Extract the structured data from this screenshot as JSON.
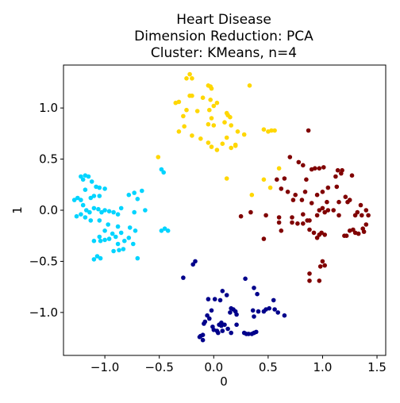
{
  "chart_data": {
    "type": "scatter",
    "title_lines": [
      "Heart Disease",
      "Dimension Reduction: PCA",
      "Cluster: KMeans, n=4"
    ],
    "xlabel": "0",
    "ylabel": "1",
    "xlim": [
      -1.38,
      1.58
    ],
    "ylim": [
      -1.42,
      1.42
    ],
    "xticks": [
      -1.0,
      -0.5,
      0.0,
      0.5,
      1.0,
      1.5
    ],
    "xtick_labels": [
      "−1.0",
      "−0.5",
      "0.0",
      "0.5",
      "1.0",
      "1.5"
    ],
    "yticks": [
      -1.0,
      -0.5,
      0.0,
      0.5,
      1.0
    ],
    "ytick_labels": [
      "−1.0",
      "−0.5",
      "0.0",
      "0.5",
      "1.0"
    ],
    "grid": false,
    "legend": "none",
    "series": [
      {
        "color": "#00d4ff",
        "points": [
          [
            -1.22,
            0.33
          ],
          [
            -1.18,
            0.34
          ],
          [
            -1.15,
            0.33
          ],
          [
            -1.2,
            0.3
          ],
          [
            -1.12,
            0.28
          ],
          [
            -1.08,
            0.23
          ],
          [
            -1.05,
            0.22
          ],
          [
            -1.0,
            0.21
          ],
          [
            -1.18,
            0.2
          ],
          [
            -1.13,
            0.12
          ],
          [
            -1.1,
            0.14
          ],
          [
            -1.05,
            0.14
          ],
          [
            -1.25,
            0.12
          ],
          [
            -1.28,
            0.1
          ],
          [
            -1.22,
            0.1
          ],
          [
            -1.2,
            0.05
          ],
          [
            -1.17,
            0.0
          ],
          [
            -1.14,
            -0.02
          ],
          [
            -1.1,
            0.02
          ],
          [
            -1.06,
            0.01
          ],
          [
            -1.03,
            -0.02
          ],
          [
            -1.0,
            0.0
          ],
          [
            -0.96,
            -0.01
          ],
          [
            -0.92,
            -0.02
          ],
          [
            -0.88,
            -0.04
          ],
          [
            -0.85,
            0.02
          ],
          [
            -0.78,
            0.15
          ],
          [
            -0.73,
            0.17
          ],
          [
            -0.66,
            0.19
          ],
          [
            -0.7,
            0.11
          ],
          [
            -0.73,
            -0.02
          ],
          [
            -0.63,
            0.0
          ],
          [
            -1.22,
            -0.04
          ],
          [
            -1.26,
            -0.06
          ],
          [
            -1.18,
            -0.07
          ],
          [
            -1.13,
            -0.1
          ],
          [
            -1.05,
            -0.1
          ],
          [
            -0.97,
            -0.14
          ],
          [
            -0.88,
            -0.16
          ],
          [
            -0.77,
            -0.17
          ],
          [
            -0.72,
            -0.2
          ],
          [
            -1.0,
            -0.2
          ],
          [
            -0.93,
            -0.23
          ],
          [
            -0.85,
            -0.22
          ],
          [
            -0.9,
            -0.26
          ],
          [
            -1.05,
            -0.26
          ],
          [
            -1.1,
            -0.3
          ],
          [
            -1.04,
            -0.3
          ],
          [
            -1.0,
            -0.29
          ],
          [
            -0.96,
            -0.28
          ],
          [
            -0.88,
            -0.33
          ],
          [
            -0.82,
            -0.3
          ],
          [
            -0.78,
            -0.27
          ],
          [
            -0.74,
            -0.33
          ],
          [
            -0.92,
            -0.4
          ],
          [
            -0.87,
            -0.39
          ],
          [
            -0.83,
            -0.38
          ],
          [
            -1.07,
            -0.45
          ],
          [
            -1.04,
            -0.47
          ],
          [
            -1.1,
            -0.48
          ],
          [
            -0.7,
            -0.47
          ],
          [
            -0.48,
            0.4
          ],
          [
            -0.46,
            0.37
          ],
          [
            -0.48,
            -0.2
          ],
          [
            -0.45,
            -0.18
          ],
          [
            -0.42,
            -0.2
          ]
        ]
      },
      {
        "color": "#ffd700",
        "points": [
          [
            -0.25,
            1.29
          ],
          [
            -0.22,
            1.33
          ],
          [
            -0.2,
            1.29
          ],
          [
            -0.05,
            1.22
          ],
          [
            -0.03,
            1.21
          ],
          [
            -0.02,
            1.19
          ],
          [
            0.33,
            1.22
          ],
          [
            -0.35,
            1.05
          ],
          [
            -0.32,
            1.06
          ],
          [
            -0.22,
            1.12
          ],
          [
            -0.2,
            1.12
          ],
          [
            -0.1,
            1.1
          ],
          [
            -0.03,
            1.08
          ],
          [
            0.0,
            1.02
          ],
          [
            0.03,
            1.05
          ],
          [
            -0.04,
            0.98
          ],
          [
            -0.15,
            0.97
          ],
          [
            -0.25,
            0.98
          ],
          [
            -0.28,
            0.92
          ],
          [
            0.12,
            0.95
          ],
          [
            0.13,
            0.93
          ],
          [
            0.15,
            0.91
          ],
          [
            -0.02,
            0.9
          ],
          [
            -0.05,
            0.84
          ],
          [
            0.0,
            0.83
          ],
          [
            0.1,
            0.86
          ],
          [
            0.16,
            0.83
          ],
          [
            -0.27,
            0.82
          ],
          [
            -0.32,
            0.77
          ],
          [
            -0.2,
            0.73
          ],
          [
            0.22,
            0.77
          ],
          [
            0.28,
            0.74
          ],
          [
            0.46,
            0.79
          ],
          [
            0.5,
            0.77
          ],
          [
            0.53,
            0.78
          ],
          [
            0.56,
            0.78
          ],
          [
            -0.12,
            0.7
          ],
          [
            0.12,
            0.71
          ],
          [
            -0.05,
            0.66
          ],
          [
            0.08,
            0.65
          ],
          [
            -0.02,
            0.62
          ],
          [
            0.03,
            0.59
          ],
          [
            0.2,
            0.63
          ],
          [
            0.16,
            0.61
          ],
          [
            0.2,
            0.64
          ],
          [
            -0.51,
            0.52
          ],
          [
            0.12,
            0.31
          ],
          [
            0.35,
            0.15
          ],
          [
            0.46,
            0.3
          ],
          [
            0.52,
            0.22
          ],
          [
            0.6,
            0.41
          ]
        ]
      },
      {
        "color": "#800000",
        "points": [
          [
            0.87,
            0.78
          ],
          [
            0.7,
            0.52
          ],
          [
            0.78,
            0.47
          ],
          [
            0.82,
            0.44
          ],
          [
            0.9,
            0.4
          ],
          [
            0.93,
            0.41
          ],
          [
            0.97,
            0.41
          ],
          [
            1.01,
            0.42
          ],
          [
            1.14,
            0.39
          ],
          [
            1.18,
            0.39
          ],
          [
            1.17,
            0.36
          ],
          [
            1.12,
            0.33
          ],
          [
            1.27,
            0.34
          ],
          [
            0.85,
            0.3
          ],
          [
            0.65,
            0.31
          ],
          [
            0.58,
            0.3
          ],
          [
            0.62,
            0.21
          ],
          [
            0.68,
            0.18
          ],
          [
            0.75,
            0.15
          ],
          [
            0.84,
            0.18
          ],
          [
            0.95,
            0.15
          ],
          [
            1.0,
            0.18
          ],
          [
            1.05,
            0.22
          ],
          [
            1.13,
            0.23
          ],
          [
            1.21,
            0.13
          ],
          [
            0.73,
            0.1
          ],
          [
            0.81,
            0.1
          ],
          [
            0.9,
            0.07
          ],
          [
            1.04,
            0.08
          ],
          [
            1.15,
            0.08
          ],
          [
            1.23,
            0.08
          ],
          [
            1.25,
            0.1
          ],
          [
            1.35,
            0.05
          ],
          [
            1.4,
            0.0
          ],
          [
            1.42,
            -0.05
          ],
          [
            1.36,
            -0.05
          ],
          [
            1.32,
            -0.02
          ],
          [
            1.3,
            -0.05
          ],
          [
            1.0,
            0.02
          ],
          [
            0.97,
            0.0
          ],
          [
            1.02,
            -0.02
          ],
          [
            1.05,
            0.0
          ],
          [
            1.1,
            0.0
          ],
          [
            0.82,
            -0.04
          ],
          [
            0.86,
            -0.1
          ],
          [
            0.88,
            -0.1
          ],
          [
            0.95,
            -0.05
          ],
          [
            1.15,
            -0.05
          ],
          [
            0.6,
            -0.07
          ],
          [
            0.72,
            -0.12
          ],
          [
            0.77,
            -0.13
          ],
          [
            0.82,
            -0.13
          ],
          [
            0.88,
            -0.19
          ],
          [
            0.92,
            -0.22
          ],
          [
            0.97,
            -0.24
          ],
          [
            0.99,
            -0.22
          ],
          [
            1.02,
            -0.24
          ],
          [
            0.95,
            -0.27
          ],
          [
            1.25,
            -0.2
          ],
          [
            1.28,
            -0.19
          ],
          [
            1.3,
            -0.22
          ],
          [
            1.33,
            -0.23
          ],
          [
            1.38,
            -0.21
          ],
          [
            1.22,
            -0.25
          ],
          [
            1.2,
            -0.25
          ],
          [
            1.4,
            -0.14
          ],
          [
            1.37,
            -0.18
          ],
          [
            0.62,
            -0.2
          ],
          [
            0.46,
            -0.28
          ],
          [
            0.6,
            -0.12
          ],
          [
            0.72,
            -0.07
          ],
          [
            1.0,
            -0.5
          ],
          [
            0.98,
            -0.55
          ],
          [
            1.02,
            -0.54
          ],
          [
            0.97,
            -0.69
          ],
          [
            0.88,
            -0.62
          ],
          [
            0.88,
            -0.69
          ],
          [
            0.25,
            -0.06
          ],
          [
            0.34,
            -0.02
          ],
          [
            0.48,
            -0.05
          ]
        ]
      },
      {
        "color": "#00008b",
        "points": [
          [
            -0.17,
            -0.5
          ],
          [
            -0.19,
            -0.53
          ],
          [
            -0.28,
            -0.66
          ],
          [
            0.29,
            -0.67
          ],
          [
            0.37,
            -0.76
          ],
          [
            0.4,
            -0.82
          ],
          [
            0.08,
            -0.79
          ],
          [
            0.12,
            -0.83
          ],
          [
            0.01,
            -0.87
          ],
          [
            0.06,
            -0.88
          ],
          [
            -0.05,
            -0.87
          ],
          [
            0.55,
            -0.88
          ],
          [
            0.56,
            -0.97
          ],
          [
            0.51,
            -0.96
          ],
          [
            0.48,
            -0.97
          ],
          [
            0.46,
            -0.99
          ],
          [
            0.41,
            -0.99
          ],
          [
            0.37,
            -1.04
          ],
          [
            0.59,
            -1.0
          ],
          [
            0.36,
            -0.98
          ],
          [
            0.16,
            -0.96
          ],
          [
            0.15,
            -1.0
          ],
          [
            0.18,
            -0.97
          ],
          [
            0.2,
            -0.99
          ],
          [
            0.21,
            -1.02
          ],
          [
            -0.02,
            -0.98
          ],
          [
            -0.06,
            -1.03
          ],
          [
            -0.04,
            -1.06
          ],
          [
            -0.08,
            -1.09
          ],
          [
            -0.09,
            -1.11
          ],
          [
            0.07,
            -1.1
          ],
          [
            0.05,
            -1.12
          ],
          [
            0.07,
            -1.13
          ],
          [
            0.1,
            -1.12
          ],
          [
            -0.01,
            -1.14
          ],
          [
            0.0,
            -1.17
          ],
          [
            0.03,
            -1.18
          ],
          [
            0.08,
            -1.18
          ],
          [
            0.13,
            -1.16
          ],
          [
            0.16,
            -1.2
          ],
          [
            0.21,
            -1.12
          ],
          [
            0.32,
            -1.21
          ],
          [
            0.35,
            -1.21
          ],
          [
            0.37,
            -1.2
          ],
          [
            0.39,
            -1.19
          ],
          [
            -0.12,
            -1.23
          ],
          [
            -0.1,
            -1.22
          ],
          [
            -0.13,
            -1.24
          ],
          [
            -0.1,
            -1.27
          ],
          [
            0.04,
            -1.2
          ],
          [
            0.28,
            -1.2
          ],
          [
            0.65,
            -1.03
          ],
          [
            0.3,
            -1.21
          ]
        ]
      }
    ]
  }
}
